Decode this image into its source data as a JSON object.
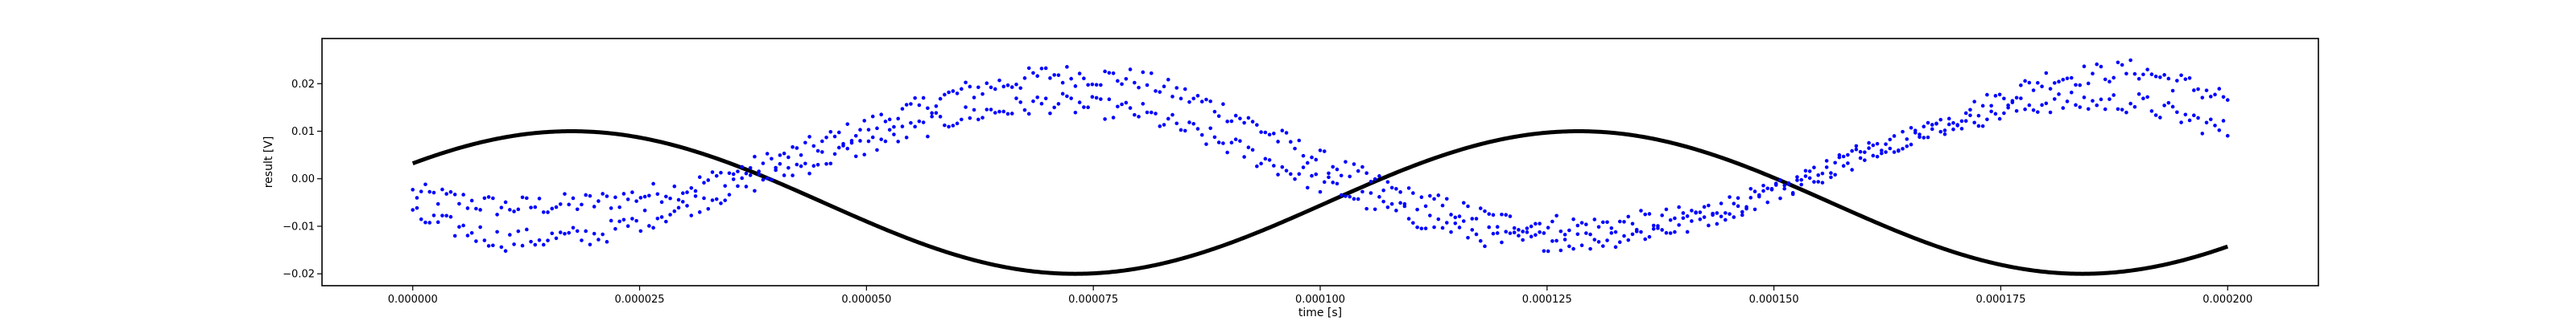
{
  "chart_data": {
    "type": "scatter",
    "title": "",
    "xlabel": "time [s]",
    "ylabel": "result [V]",
    "xlim": [
      -1e-05,
      0.00021
    ],
    "ylim": [
      -0.0225,
      0.0295
    ],
    "grid": false,
    "x_ticks": [
      0.0,
      2.5e-05,
      5e-05,
      7.5e-05,
      0.0001,
      0.000125,
      0.00015,
      0.000175,
      0.0002
    ],
    "x_tick_labels": [
      "0.000000",
      "0.000025",
      "0.000050",
      "0.000075",
      "0.000100",
      "0.000125",
      "0.000150",
      "0.000175",
      "0.000200"
    ],
    "y_ticks": [
      -0.02,
      -0.01,
      0.0,
      0.01,
      0.02
    ],
    "y_tick_labels": [
      "−0.02",
      "−0.01",
      "0.00",
      "0.01",
      "0.02"
    ],
    "series": [
      {
        "style": "line",
        "color": "#000000",
        "function": "sinusoid",
        "offset": -0.005,
        "amplitude": 0.015,
        "period": 0.000111,
        "peak_at": 1.75e-05,
        "x_range": [
          0.0,
          0.0002
        ]
      },
      {
        "style": "points",
        "color": "#0000ff",
        "branches": [
          {
            "x": [
              0.0,
              1e-05,
              2e-05,
              3e-05,
              4e-05,
              5e-05,
              6e-05,
              7e-05,
              8e-05,
              9e-05,
              0.0001,
              0.00011,
              0.00012,
              0.00013,
              0.00014,
              0.00015,
              0.00016,
              0.00017,
              0.00018,
              0.00019,
              0.0002
            ],
            "y": [
              -0.003,
              -0.006,
              -0.005,
              -0.002,
              0.004,
              0.011,
              0.018,
              0.022,
              0.021,
              0.014,
              0.004,
              -0.004,
              -0.009,
              -0.01,
              -0.008,
              -0.003,
              0.005,
              0.013,
              0.021,
              0.023,
              0.017
            ]
          },
          {
            "x": [
              0.0,
              1e-05,
              2e-05,
              3e-05,
              4e-05,
              5e-05,
              6e-05,
              7e-05,
              8e-05,
              9e-05,
              0.0001,
              0.00011,
              0.00012,
              0.00013,
              0.00014,
              0.00015,
              0.00016,
              0.00017,
              0.00018,
              0.00019,
              0.0002
            ],
            "y": [
              -0.008,
              -0.013,
              -0.012,
              -0.006,
              0.001,
              0.007,
              0.013,
              0.016,
              0.014,
              0.007,
              -0.001,
              -0.008,
              -0.013,
              -0.013,
              -0.01,
              -0.003,
              0.006,
              0.012,
              0.016,
              0.016,
              0.01
            ]
          }
        ]
      }
    ]
  }
}
